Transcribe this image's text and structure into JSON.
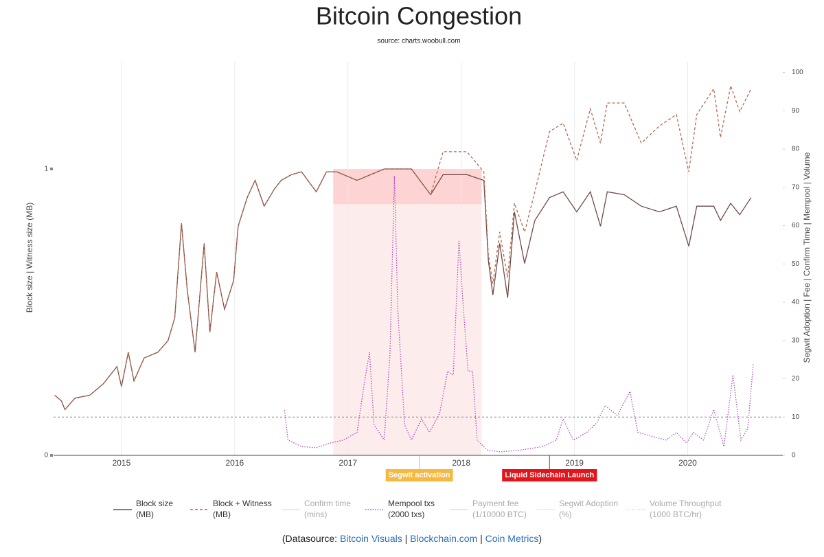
{
  "chart_data": {
    "type": "line",
    "title": "Bitcoin Congestion",
    "subtitle": "source: charts.woobull.com",
    "y_label": "Block size | Witness size (MB)",
    "y2_label": "Segwit Adoption | Fee | Confirm Time | Mempool | Volume",
    "xlim": [
      2014.4,
      2020.84
    ],
    "xticks": [
      2015,
      2016,
      2017,
      2018,
      2019,
      2020
    ],
    "ylim": [
      0,
      1.35
    ],
    "yticks": [
      0,
      1
    ],
    "y2lim": [
      0,
      101
    ],
    "y2ticks": [
      0,
      10,
      20,
      30,
      40,
      50,
      60,
      70,
      80,
      90,
      100
    ],
    "grid": true,
    "hline": {
      "value": 10,
      "axis": "y2",
      "color": "#888"
    },
    "shapes": [
      {
        "x0": 2016.87,
        "x1": 2018.18,
        "y0": 0,
        "y1": 1,
        "color": "#fdecec"
      },
      {
        "x0": 2016.87,
        "x1": 2018.18,
        "y0": 0.877,
        "y1": 1,
        "color": "#fdd3d3"
      }
    ],
    "annotations": [
      {
        "x": 2017.63,
        "text": "Segwit activation",
        "color": "#f5b942"
      },
      {
        "x": 2018.78,
        "text": "Liquid Sidechain Launch",
        "color": "#e3141b"
      }
    ],
    "series": [
      {
        "name": "Block size",
        "unit": "(MB)",
        "color": "#6f4a45",
        "dash": "solid",
        "x": [
          2014.41,
          2014.47,
          2014.5,
          2014.59,
          2014.72,
          2014.84,
          2014.96,
          2015.0,
          2015.06,
          2015.11,
          2015.2,
          2015.32,
          2015.41,
          2015.47,
          2015.53,
          2015.58,
          2015.65,
          2015.73,
          2015.78,
          2015.84,
          2015.91,
          2015.99,
          2016.03,
          2016.11,
          2016.18,
          2016.26,
          2016.35,
          2016.41,
          2016.5,
          2016.59,
          2016.72,
          2016.81,
          2016.9,
          2017.08,
          2017.32,
          2017.56,
          2017.73,
          2017.84,
          2018.05,
          2018.2,
          2018.24,
          2018.28,
          2018.34,
          2018.41,
          2018.47,
          2018.56,
          2018.65,
          2018.78,
          2018.9,
          2019.02,
          2019.14,
          2019.23,
          2019.29,
          2019.44,
          2019.59,
          2019.75,
          2019.9,
          2020.01,
          2020.08,
          2020.23,
          2020.29,
          2020.38,
          2020.46,
          2020.56
        ],
        "values": [
          0.21,
          0.19,
          0.16,
          0.2,
          0.21,
          0.25,
          0.31,
          0.24,
          0.36,
          0.26,
          0.34,
          0.36,
          0.4,
          0.48,
          0.81,
          0.58,
          0.36,
          0.74,
          0.43,
          0.64,
          0.51,
          0.61,
          0.8,
          0.9,
          0.96,
          0.87,
          0.93,
          0.96,
          0.98,
          0.99,
          0.92,
          0.99,
          0.99,
          0.96,
          1.0,
          1.0,
          0.91,
          0.98,
          0.98,
          0.96,
          0.68,
          0.56,
          0.74,
          0.55,
          0.85,
          0.67,
          0.82,
          0.9,
          0.92,
          0.85,
          0.92,
          0.8,
          0.92,
          0.91,
          0.87,
          0.85,
          0.87,
          0.73,
          0.87,
          0.87,
          0.82,
          0.88,
          0.84,
          0.9
        ]
      },
      {
        "name": "Block + Witness",
        "unit": "(MB)",
        "color": "#b5694f",
        "dash": "dash",
        "x": [
          2014.41,
          2014.47,
          2014.5,
          2014.59,
          2014.72,
          2014.84,
          2014.96,
          2015.0,
          2015.06,
          2015.11,
          2015.2,
          2015.32,
          2015.41,
          2015.47,
          2015.53,
          2015.58,
          2015.65,
          2015.73,
          2015.78,
          2015.84,
          2015.91,
          2015.99,
          2016.03,
          2016.11,
          2016.18,
          2016.26,
          2016.35,
          2016.41,
          2016.5,
          2016.59,
          2016.72,
          2016.81,
          2016.9,
          2017.08,
          2017.32,
          2017.56,
          2017.73,
          2017.84,
          2018.05,
          2018.2,
          2018.24,
          2018.28,
          2018.34,
          2018.41,
          2018.47,
          2018.56,
          2018.65,
          2018.78,
          2018.9,
          2019.02,
          2019.14,
          2019.23,
          2019.29,
          2019.44,
          2019.59,
          2019.75,
          2019.9,
          2020.01,
          2020.08,
          2020.23,
          2020.29,
          2020.38,
          2020.46,
          2020.56
        ],
        "values": [
          0.21,
          0.19,
          0.16,
          0.2,
          0.21,
          0.25,
          0.31,
          0.24,
          0.36,
          0.26,
          0.34,
          0.36,
          0.4,
          0.48,
          0.81,
          0.58,
          0.36,
          0.74,
          0.43,
          0.64,
          0.51,
          0.61,
          0.8,
          0.9,
          0.96,
          0.87,
          0.93,
          0.96,
          0.98,
          0.99,
          0.92,
          0.99,
          0.99,
          0.96,
          1.0,
          1.0,
          0.91,
          1.06,
          1.06,
          0.99,
          0.7,
          0.6,
          0.78,
          0.62,
          0.88,
          0.78,
          0.92,
          1.13,
          1.16,
          1.03,
          1.21,
          1.09,
          1.23,
          1.23,
          1.09,
          1.15,
          1.19,
          0.99,
          1.19,
          1.28,
          1.11,
          1.29,
          1.2,
          1.28
        ]
      },
      {
        "name": "Confirm time",
        "unit": "(mins)",
        "color": "#f4b6b0",
        "dash": "solid",
        "hidden": true
      },
      {
        "name": "Mempool txs",
        "unit": "(2000 txs)",
        "color": "#b14fc4",
        "dash": "dot",
        "axis": "y2",
        "x": [
          2016.44,
          2016.47,
          2016.59,
          2016.72,
          2016.84,
          2016.96,
          2017.08,
          2017.14,
          2017.19,
          2017.23,
          2017.32,
          2017.37,
          2017.41,
          2017.44,
          2017.5,
          2017.56,
          2017.65,
          2017.72,
          2017.81,
          2017.88,
          2017.93,
          2017.98,
          2018.02,
          2018.06,
          2018.1,
          2018.14,
          2018.23,
          2018.35,
          2018.53,
          2018.72,
          2018.84,
          2018.9,
          2018.99,
          2019.11,
          2019.2,
          2019.27,
          2019.38,
          2019.49,
          2019.56,
          2019.68,
          2019.81,
          2019.9,
          2019.99,
          2020.05,
          2020.14,
          2020.23,
          2020.32,
          2020.4,
          2020.47,
          2020.53,
          2020.58
        ],
        "values": [
          11.8,
          4,
          2.3,
          2,
          3.2,
          4,
          6,
          18,
          27,
          8,
          4,
          26,
          73,
          38,
          8,
          4,
          9.5,
          6,
          11,
          22,
          21,
          56,
          38,
          22,
          22,
          4,
          1.4,
          0.9,
          1.4,
          2.3,
          4,
          9.5,
          4,
          6,
          8.6,
          13,
          10.4,
          16.7,
          6,
          5,
          4,
          6,
          3.2,
          6,
          4,
          12,
          2.3,
          21,
          4,
          7,
          24
        ]
      },
      {
        "name": "Payment fee",
        "unit": "(1/10000 BTC)",
        "color": "#9ccbea",
        "dash": "solid",
        "hidden": true
      },
      {
        "name": "Segwit Adoption",
        "unit": "(%)",
        "color": "#f7d58a",
        "dash": "solid",
        "hidden": true
      },
      {
        "name": "Volume Throughput",
        "unit": "(1000 BTC/hr)",
        "color": "#7cc3e0",
        "dash": "dot",
        "hidden": true
      }
    ],
    "footer": {
      "prefix": "(Datasource:",
      "links": [
        "Bitcoin Visuals",
        "Blockchain.com",
        "Coin Metrics"
      ],
      "separator": "|",
      "suffix": ")"
    }
  }
}
